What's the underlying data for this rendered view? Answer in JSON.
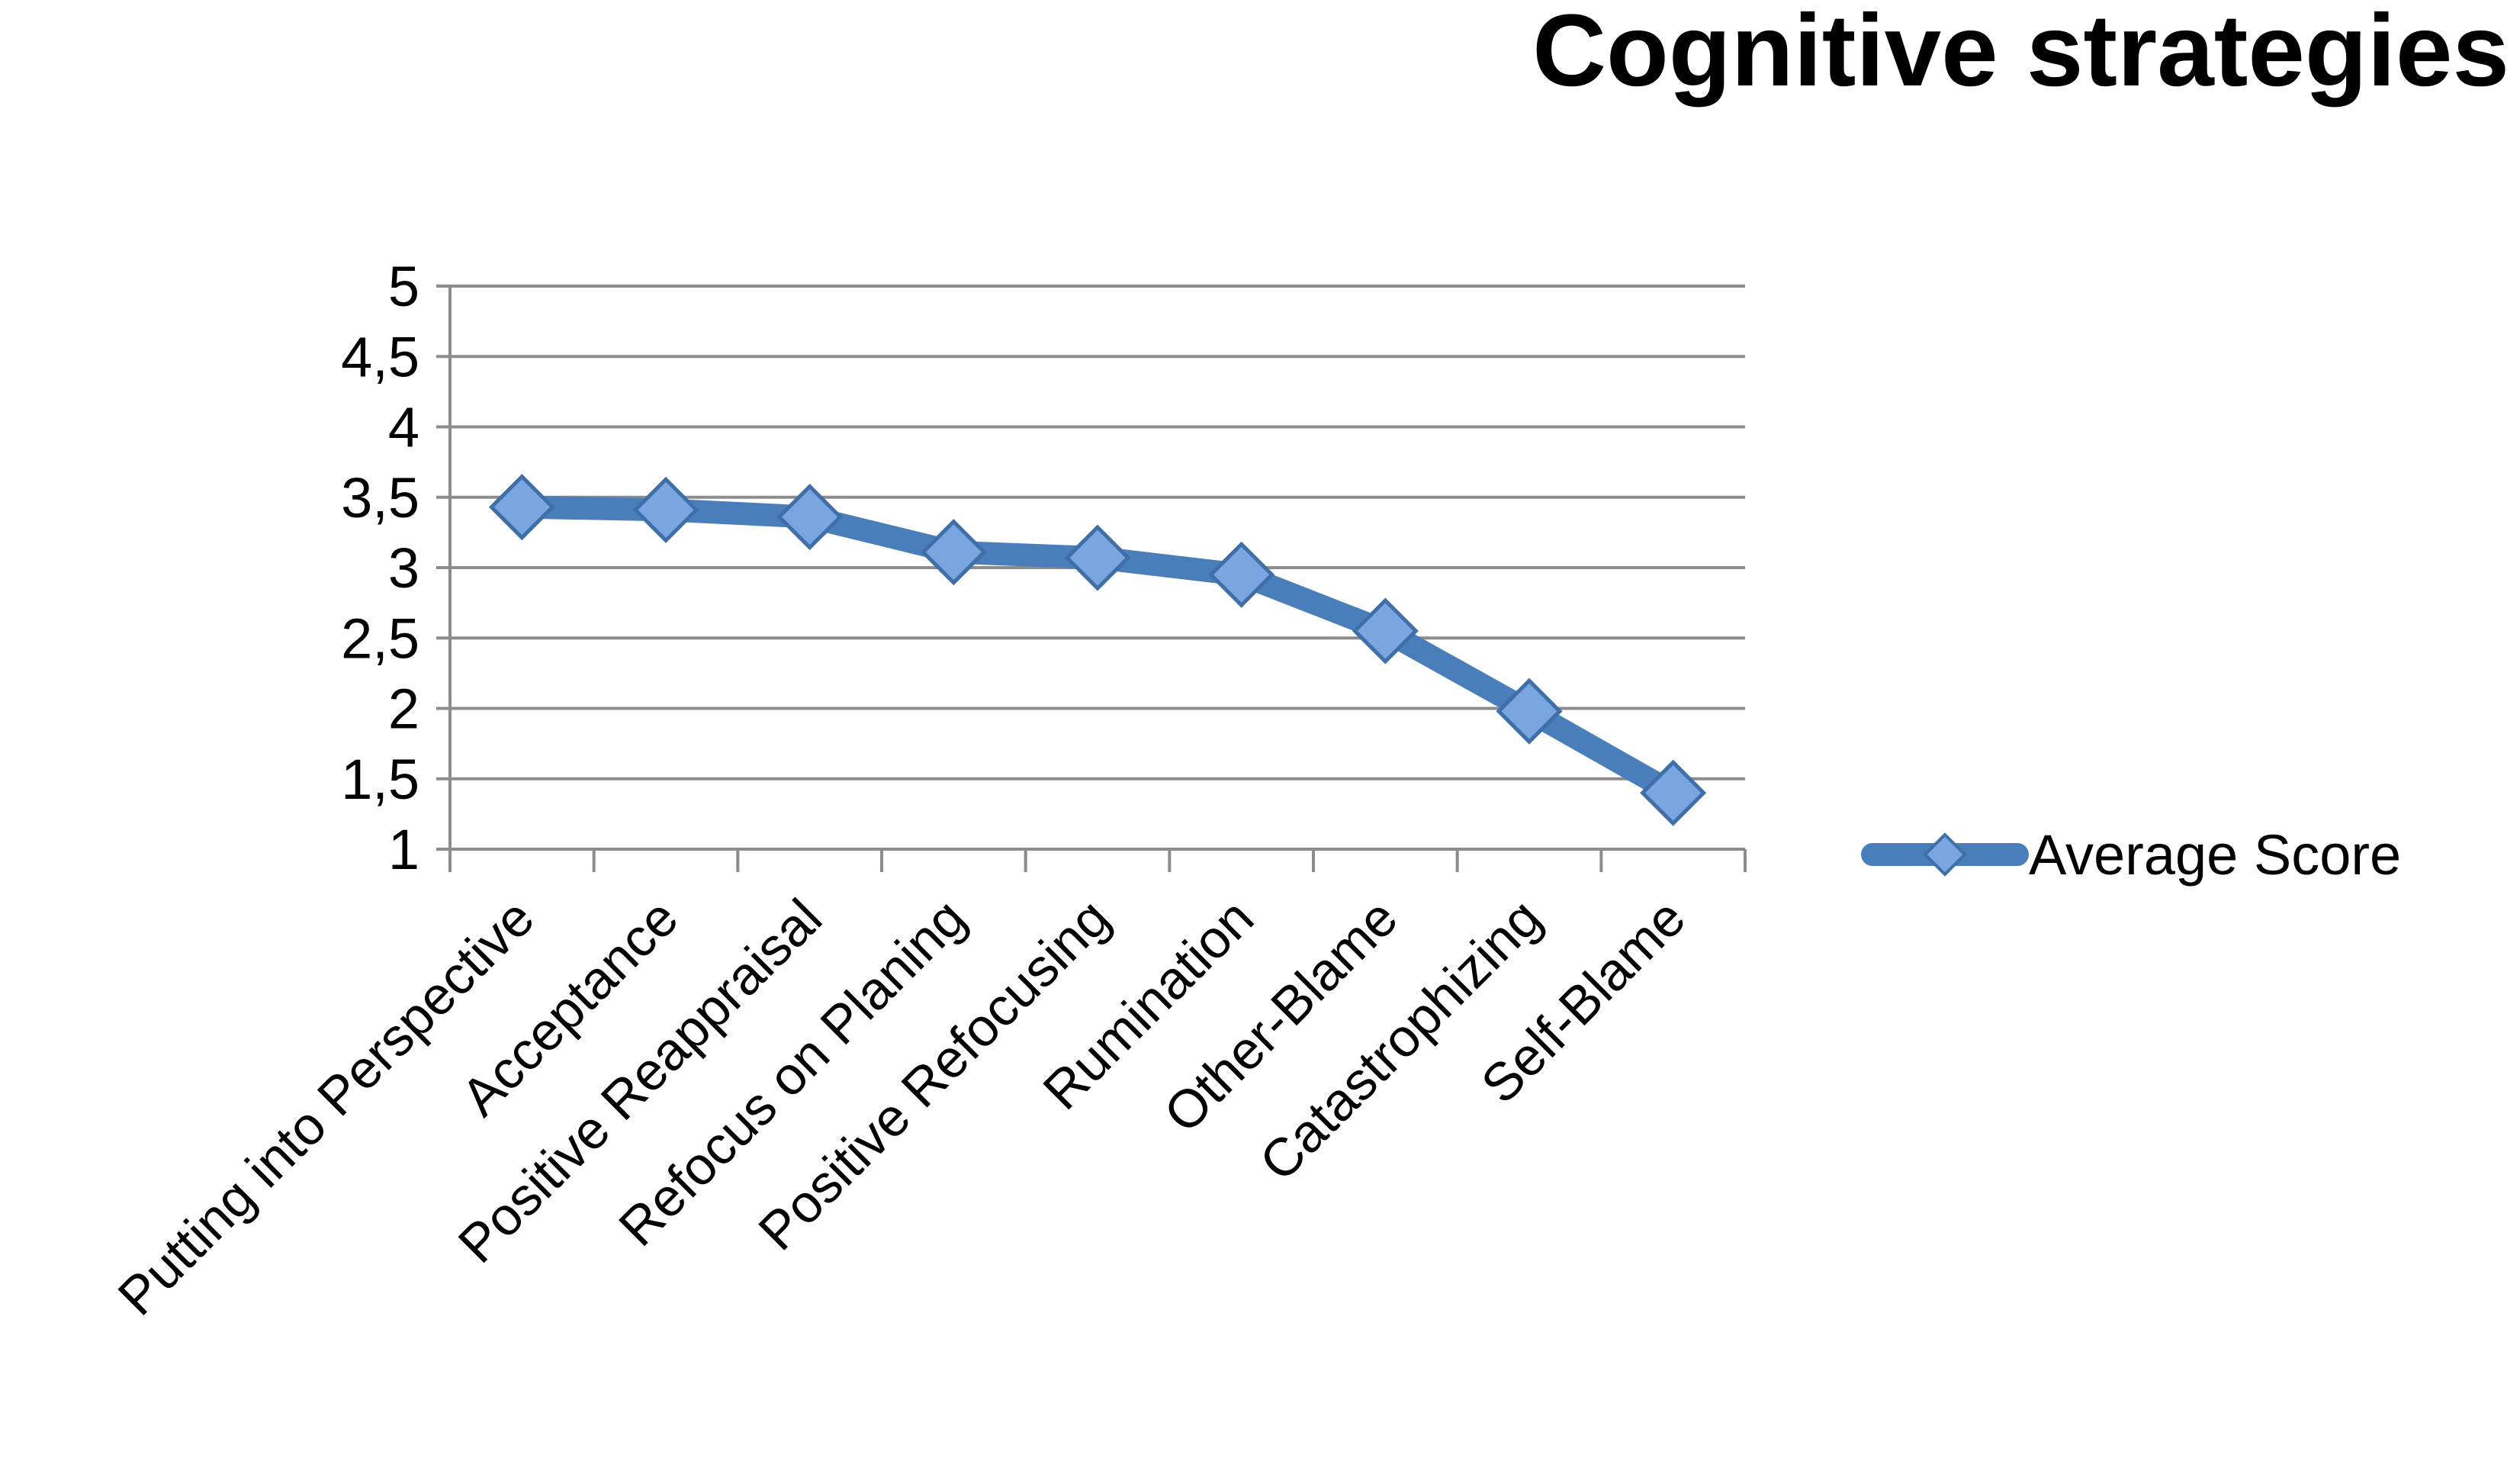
{
  "chart_data": {
    "type": "line",
    "title": "Cognitive strategies",
    "categories": [
      "Putting into Perspective",
      "Acceptance",
      "Positive Reappraisal",
      "Refocus on Planing",
      "Positive Refocusing",
      "Rumination",
      "Other-Blame",
      "Catastrophizing",
      "Self-Blame"
    ],
    "series": [
      {
        "name": "Average Score",
        "values": [
          3.43,
          3.41,
          3.36,
          3.11,
          3.07,
          2.95,
          2.55,
          1.98,
          1.4
        ],
        "color": "#4a7ebb",
        "marker": "diamond"
      }
    ],
    "yticks": [
      "1",
      "1,5",
      "2",
      "2,5",
      "3",
      "3,5",
      "4",
      "4,5",
      "5"
    ],
    "ytick_values": [
      1,
      1.5,
      2,
      2.5,
      3,
      3.5,
      4,
      4.5,
      5
    ],
    "ylim": [
      1,
      5
    ],
    "xlabel": "",
    "ylabel": "",
    "grid": "horizontal",
    "legend": "right",
    "colors": {
      "line": "#4a7ebb",
      "marker_fill": "#7aa6e0",
      "grid": "#8c8c8c"
    }
  }
}
